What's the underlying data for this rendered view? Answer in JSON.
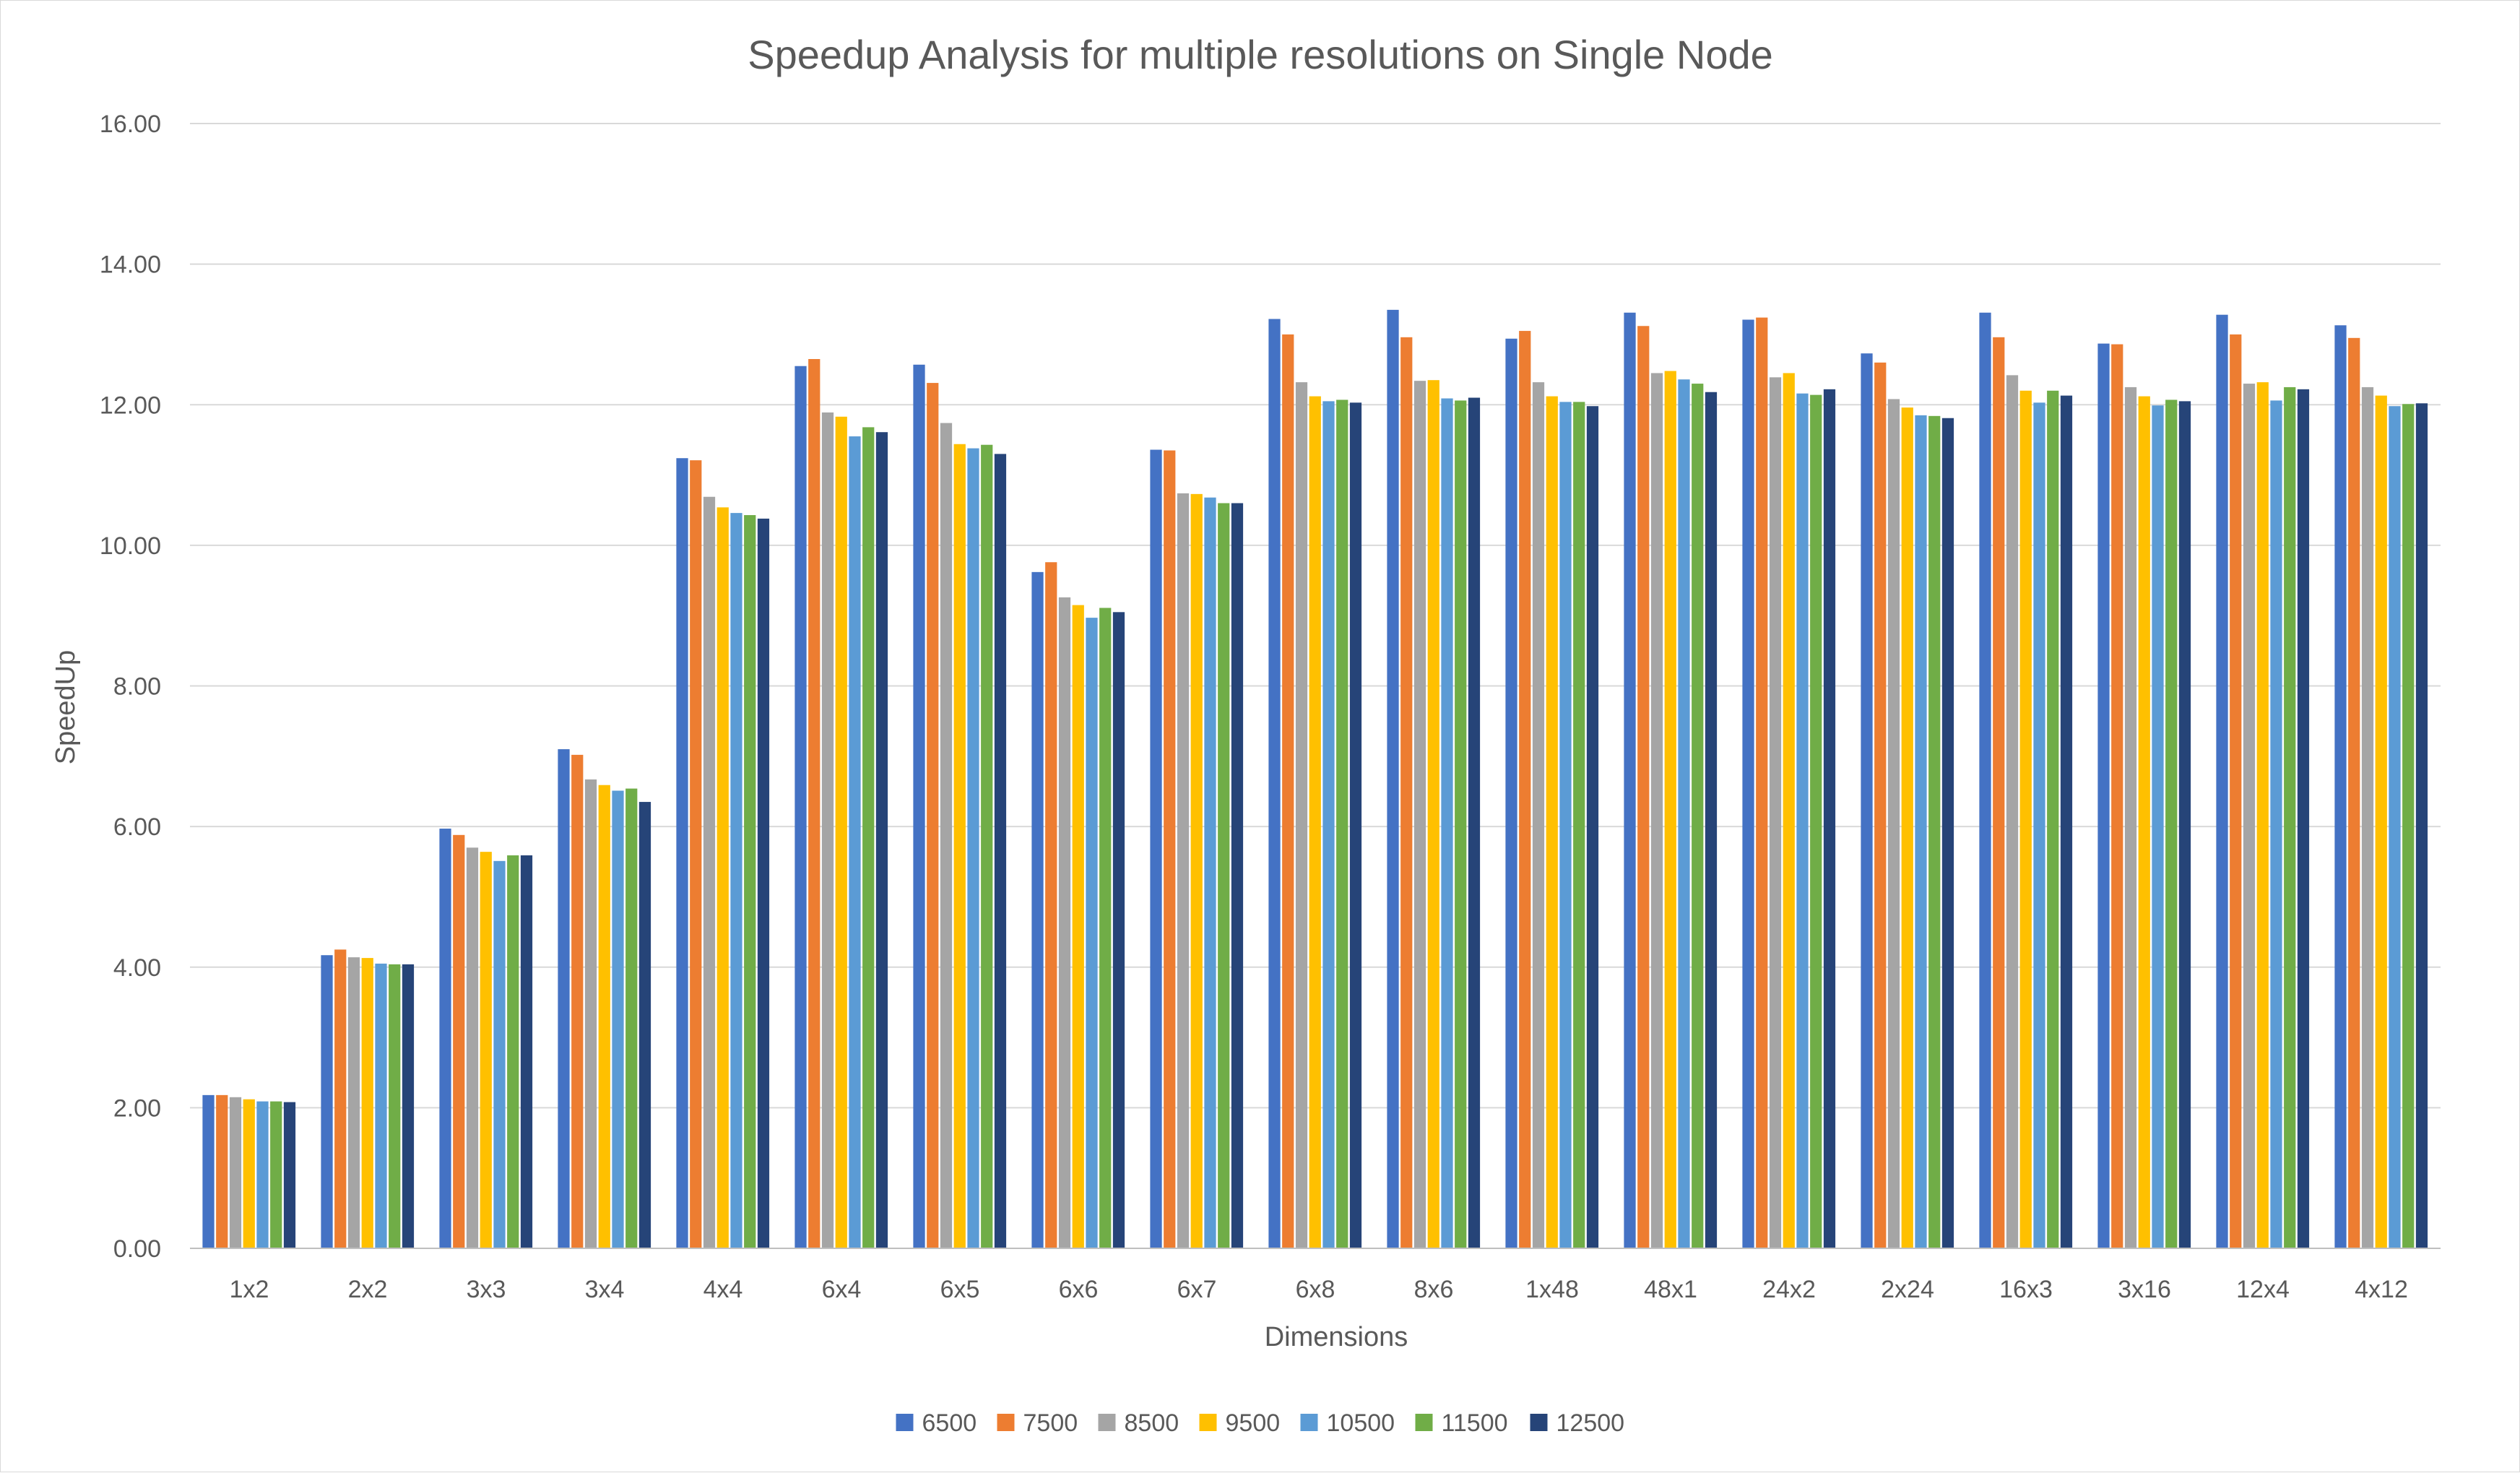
{
  "chart_data": {
    "type": "bar",
    "title": "Speedup Analysis for multiple resolutions on Single Node",
    "xlabel": "Dimensions",
    "ylabel": "SpeedUp",
    "ylim": [
      0,
      16
    ],
    "ytick_step": 2,
    "ytick_labels": [
      "0.00",
      "2.00",
      "4.00",
      "6.00",
      "8.00",
      "10.00",
      "12.00",
      "14.00",
      "16.00"
    ],
    "grid": true,
    "legend_position": "bottom",
    "categories": [
      "1x2",
      "2x2",
      "3x3",
      "3x4",
      "4x4",
      "6x4",
      "6x5",
      "6x6",
      "6x7",
      "6x8",
      "8x6",
      "1x48",
      "48x1",
      "24x2",
      "2x24",
      "16x3",
      "3x16",
      "12x4",
      "4x12"
    ],
    "series": [
      {
        "name": "6500",
        "color": "#4472C4",
        "values": [
          2.18,
          4.17,
          5.97,
          7.1,
          11.24,
          12.55,
          12.57,
          9.62,
          11.36,
          13.22,
          13.35,
          12.94,
          13.31,
          13.21,
          12.73,
          13.31,
          12.87,
          13.28,
          13.13
        ]
      },
      {
        "name": "7500",
        "color": "#ED7D31",
        "values": [
          2.18,
          4.25,
          5.88,
          7.02,
          11.21,
          12.65,
          12.31,
          9.76,
          11.35,
          13.0,
          12.96,
          13.05,
          13.12,
          13.24,
          12.6,
          12.96,
          12.86,
          13.0,
          12.95
        ]
      },
      {
        "name": "8500",
        "color": "#A5A5A5",
        "values": [
          2.15,
          4.14,
          5.7,
          6.67,
          10.69,
          11.89,
          11.74,
          9.26,
          10.74,
          12.32,
          12.34,
          12.32,
          12.45,
          12.39,
          12.08,
          12.42,
          12.25,
          12.3,
          12.25
        ]
      },
      {
        "name": "9500",
        "color": "#FFC000",
        "values": [
          2.12,
          4.13,
          5.64,
          6.59,
          10.54,
          11.83,
          11.44,
          9.15,
          10.73,
          12.12,
          12.35,
          12.12,
          12.48,
          12.45,
          11.96,
          12.2,
          12.12,
          12.32,
          12.13
        ]
      },
      {
        "name": "10500",
        "color": "#5B9BD5",
        "values": [
          2.09,
          4.05,
          5.51,
          6.51,
          10.46,
          11.55,
          11.38,
          8.97,
          10.68,
          12.05,
          12.09,
          12.04,
          12.36,
          12.16,
          11.85,
          12.03,
          11.99,
          12.06,
          11.98
        ]
      },
      {
        "name": "11500",
        "color": "#70AD47",
        "values": [
          2.09,
          4.04,
          5.59,
          6.54,
          10.43,
          11.68,
          11.43,
          9.11,
          10.6,
          12.07,
          12.06,
          12.04,
          12.3,
          12.14,
          11.84,
          12.2,
          12.07,
          12.25,
          12.01
        ]
      },
      {
        "name": "12500",
        "color": "#264478",
        "values": [
          2.08,
          4.04,
          5.59,
          6.35,
          10.38,
          11.61,
          11.3,
          9.05,
          10.6,
          12.03,
          12.1,
          11.98,
          12.18,
          12.22,
          11.81,
          12.13,
          12.05,
          12.22,
          12.02
        ]
      }
    ]
  }
}
